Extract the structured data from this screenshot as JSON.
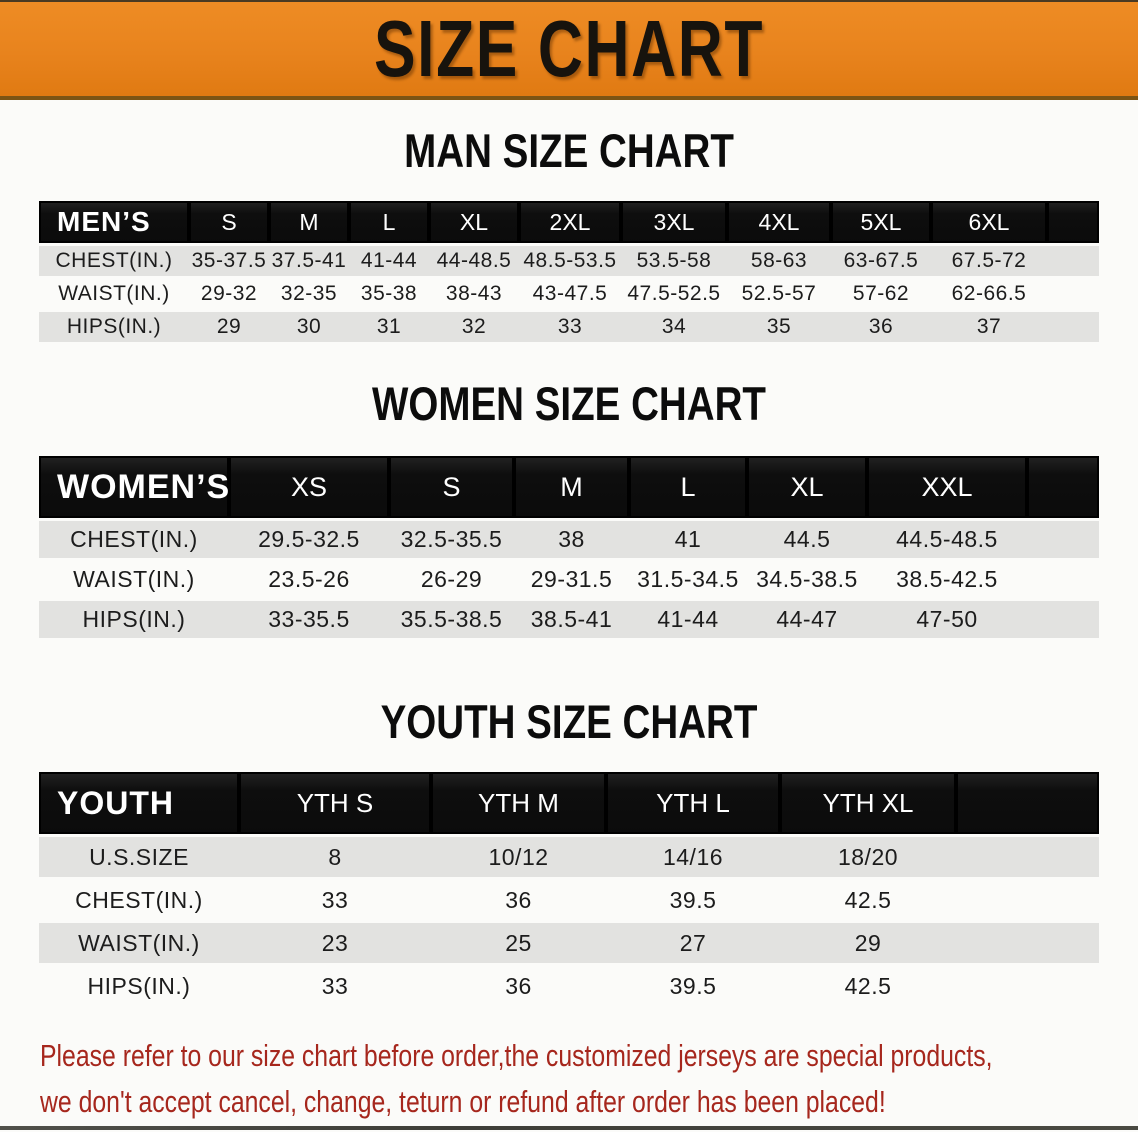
{
  "banner": {
    "title": "SIZE CHART"
  },
  "sections": {
    "men": {
      "heading": "MAN SIZE CHART",
      "corner": "MEN’S",
      "sizes": [
        "S",
        "M",
        "L",
        "XL",
        "2XL",
        "3XL",
        "4XL",
        "5XL",
        "6XL"
      ],
      "rows": [
        {
          "label": "CHEST(IN.)",
          "values": [
            "35-37.5",
            "37.5-41",
            "41-44",
            "44-48.5",
            "48.5-53.5",
            "53.5-58",
            "58-63",
            "63-67.5",
            "67.5-72"
          ]
        },
        {
          "label": "WAIST(IN.)",
          "values": [
            "29-32",
            "32-35",
            "35-38",
            "38-43",
            "43-47.5",
            "47.5-52.5",
            "52.5-57",
            "57-62",
            "62-66.5"
          ]
        },
        {
          "label": "HIPS(IN.)",
          "values": [
            "29",
            "30",
            "31",
            "32",
            "33",
            "34",
            "35",
            "36",
            "37"
          ]
        }
      ]
    },
    "women": {
      "heading": "WOMEN SIZE CHART",
      "corner": "WOMEN’S",
      "sizes": [
        "XS",
        "S",
        "M",
        "L",
        "XL",
        "XXL"
      ],
      "rows": [
        {
          "label": "CHEST(IN.)",
          "values": [
            "29.5-32.5",
            "32.5-35.5",
            "38",
            "41",
            "44.5",
            "44.5-48.5"
          ]
        },
        {
          "label": "WAIST(IN.)",
          "values": [
            "23.5-26",
            "26-29",
            "29-31.5",
            "31.5-34.5",
            "34.5-38.5",
            "38.5-42.5"
          ]
        },
        {
          "label": "HIPS(IN.)",
          "values": [
            "33-35.5",
            "35.5-38.5",
            "38.5-41",
            "41-44",
            "44-47",
            "47-50"
          ]
        }
      ]
    },
    "youth": {
      "heading": "YOUTH SIZE CHART",
      "corner": "YOUTH",
      "sizes": [
        "YTH S",
        "YTH M",
        "YTH L",
        "YTH XL"
      ],
      "rows": [
        {
          "label": "U.S.SIZE",
          "values": [
            "8",
            "10/12",
            "14/16",
            "18/20"
          ]
        },
        {
          "label": "CHEST(IN.)",
          "values": [
            "33",
            "36",
            "39.5",
            "42.5"
          ]
        },
        {
          "label": "WAIST(IN.)",
          "values": [
            "23",
            "25",
            "27",
            "29"
          ]
        },
        {
          "label": "HIPS(IN.)",
          "values": [
            "33",
            "36",
            "39.5",
            "42.5"
          ]
        }
      ]
    }
  },
  "disclaimer": {
    "line1": "Please refer to our size chart before order,the customized jerseys are special products,",
    "line2": "we don't accept cancel, change, teturn or refund after order has been placed!"
  },
  "colors": {
    "banner_orange": "#e8831d",
    "header_bar_black": "#0e0e0e",
    "row_gray": "#e2e2e0",
    "disclaimer_red": "#a6271d"
  }
}
